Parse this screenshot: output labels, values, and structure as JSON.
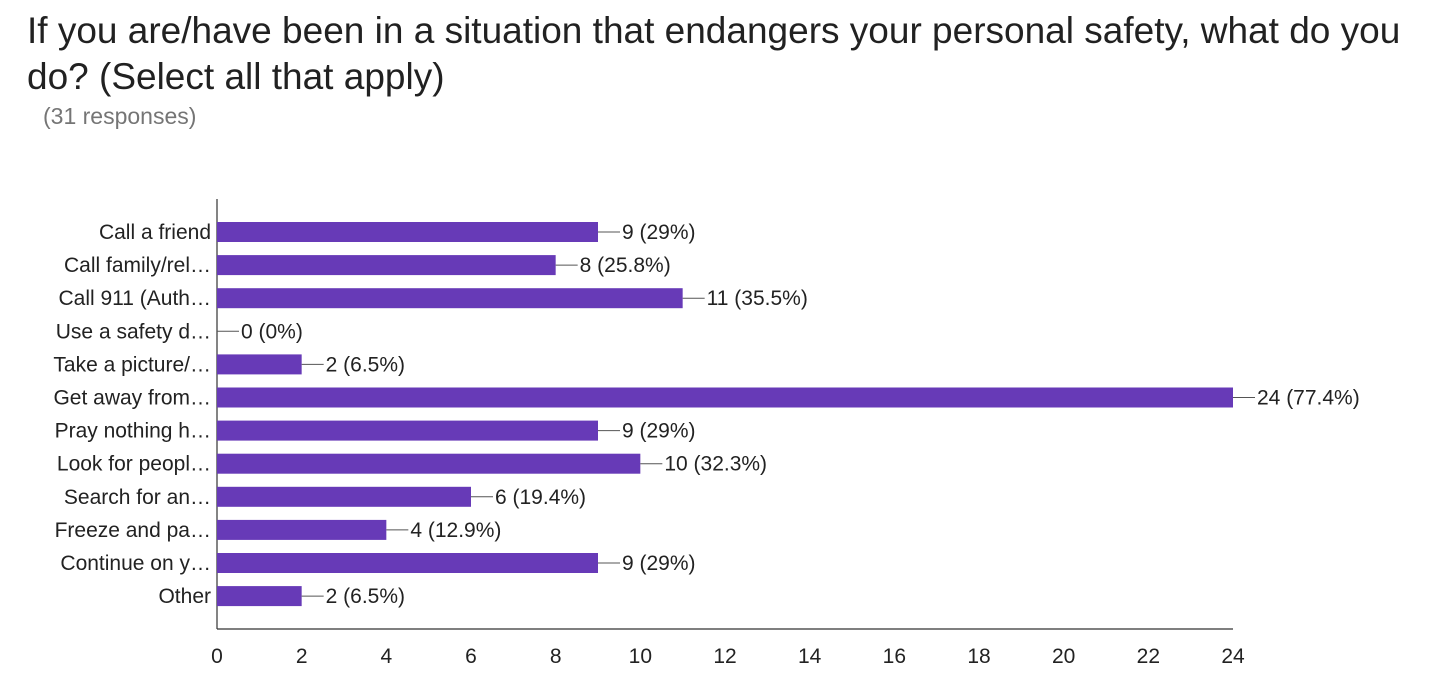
{
  "title": "If you are/have been in a situation that endangers your personal safety, what do you do? (Select all that apply)",
  "subtitle": "(31 responses)",
  "chart_data": {
    "type": "bar",
    "orientation": "horizontal",
    "categories": [
      "Call a friend",
      "Call family/rel…",
      "Call 911 (Auth…",
      "Use a safety d…",
      "Take a picture/…",
      "Get away from…",
      "Pray nothing h…",
      "Look for peopl…",
      "Search for an…",
      "Freeze and pa…",
      "Continue on y…",
      "Other"
    ],
    "values": [
      9,
      8,
      11,
      0,
      2,
      24,
      9,
      10,
      6,
      4,
      9,
      2
    ],
    "data_labels": [
      "9 (29%)",
      "8 (25.8%)",
      "11 (35.5%)",
      "0 (0%)",
      "2 (6.5%)",
      "24 (77.4%)",
      "9 (29%)",
      "10 (32.3%)",
      "6 (19.4%)",
      "4 (12.9%)",
      "9 (29%)",
      "2 (6.5%)"
    ],
    "x_ticks": [
      "0",
      "2",
      "4",
      "6",
      "8",
      "10",
      "12",
      "14",
      "16",
      "18",
      "20",
      "22",
      "24"
    ],
    "xlim": [
      0,
      24
    ],
    "xlabel": "",
    "ylabel": "",
    "grid": false,
    "bar_color": "#673ab7"
  }
}
